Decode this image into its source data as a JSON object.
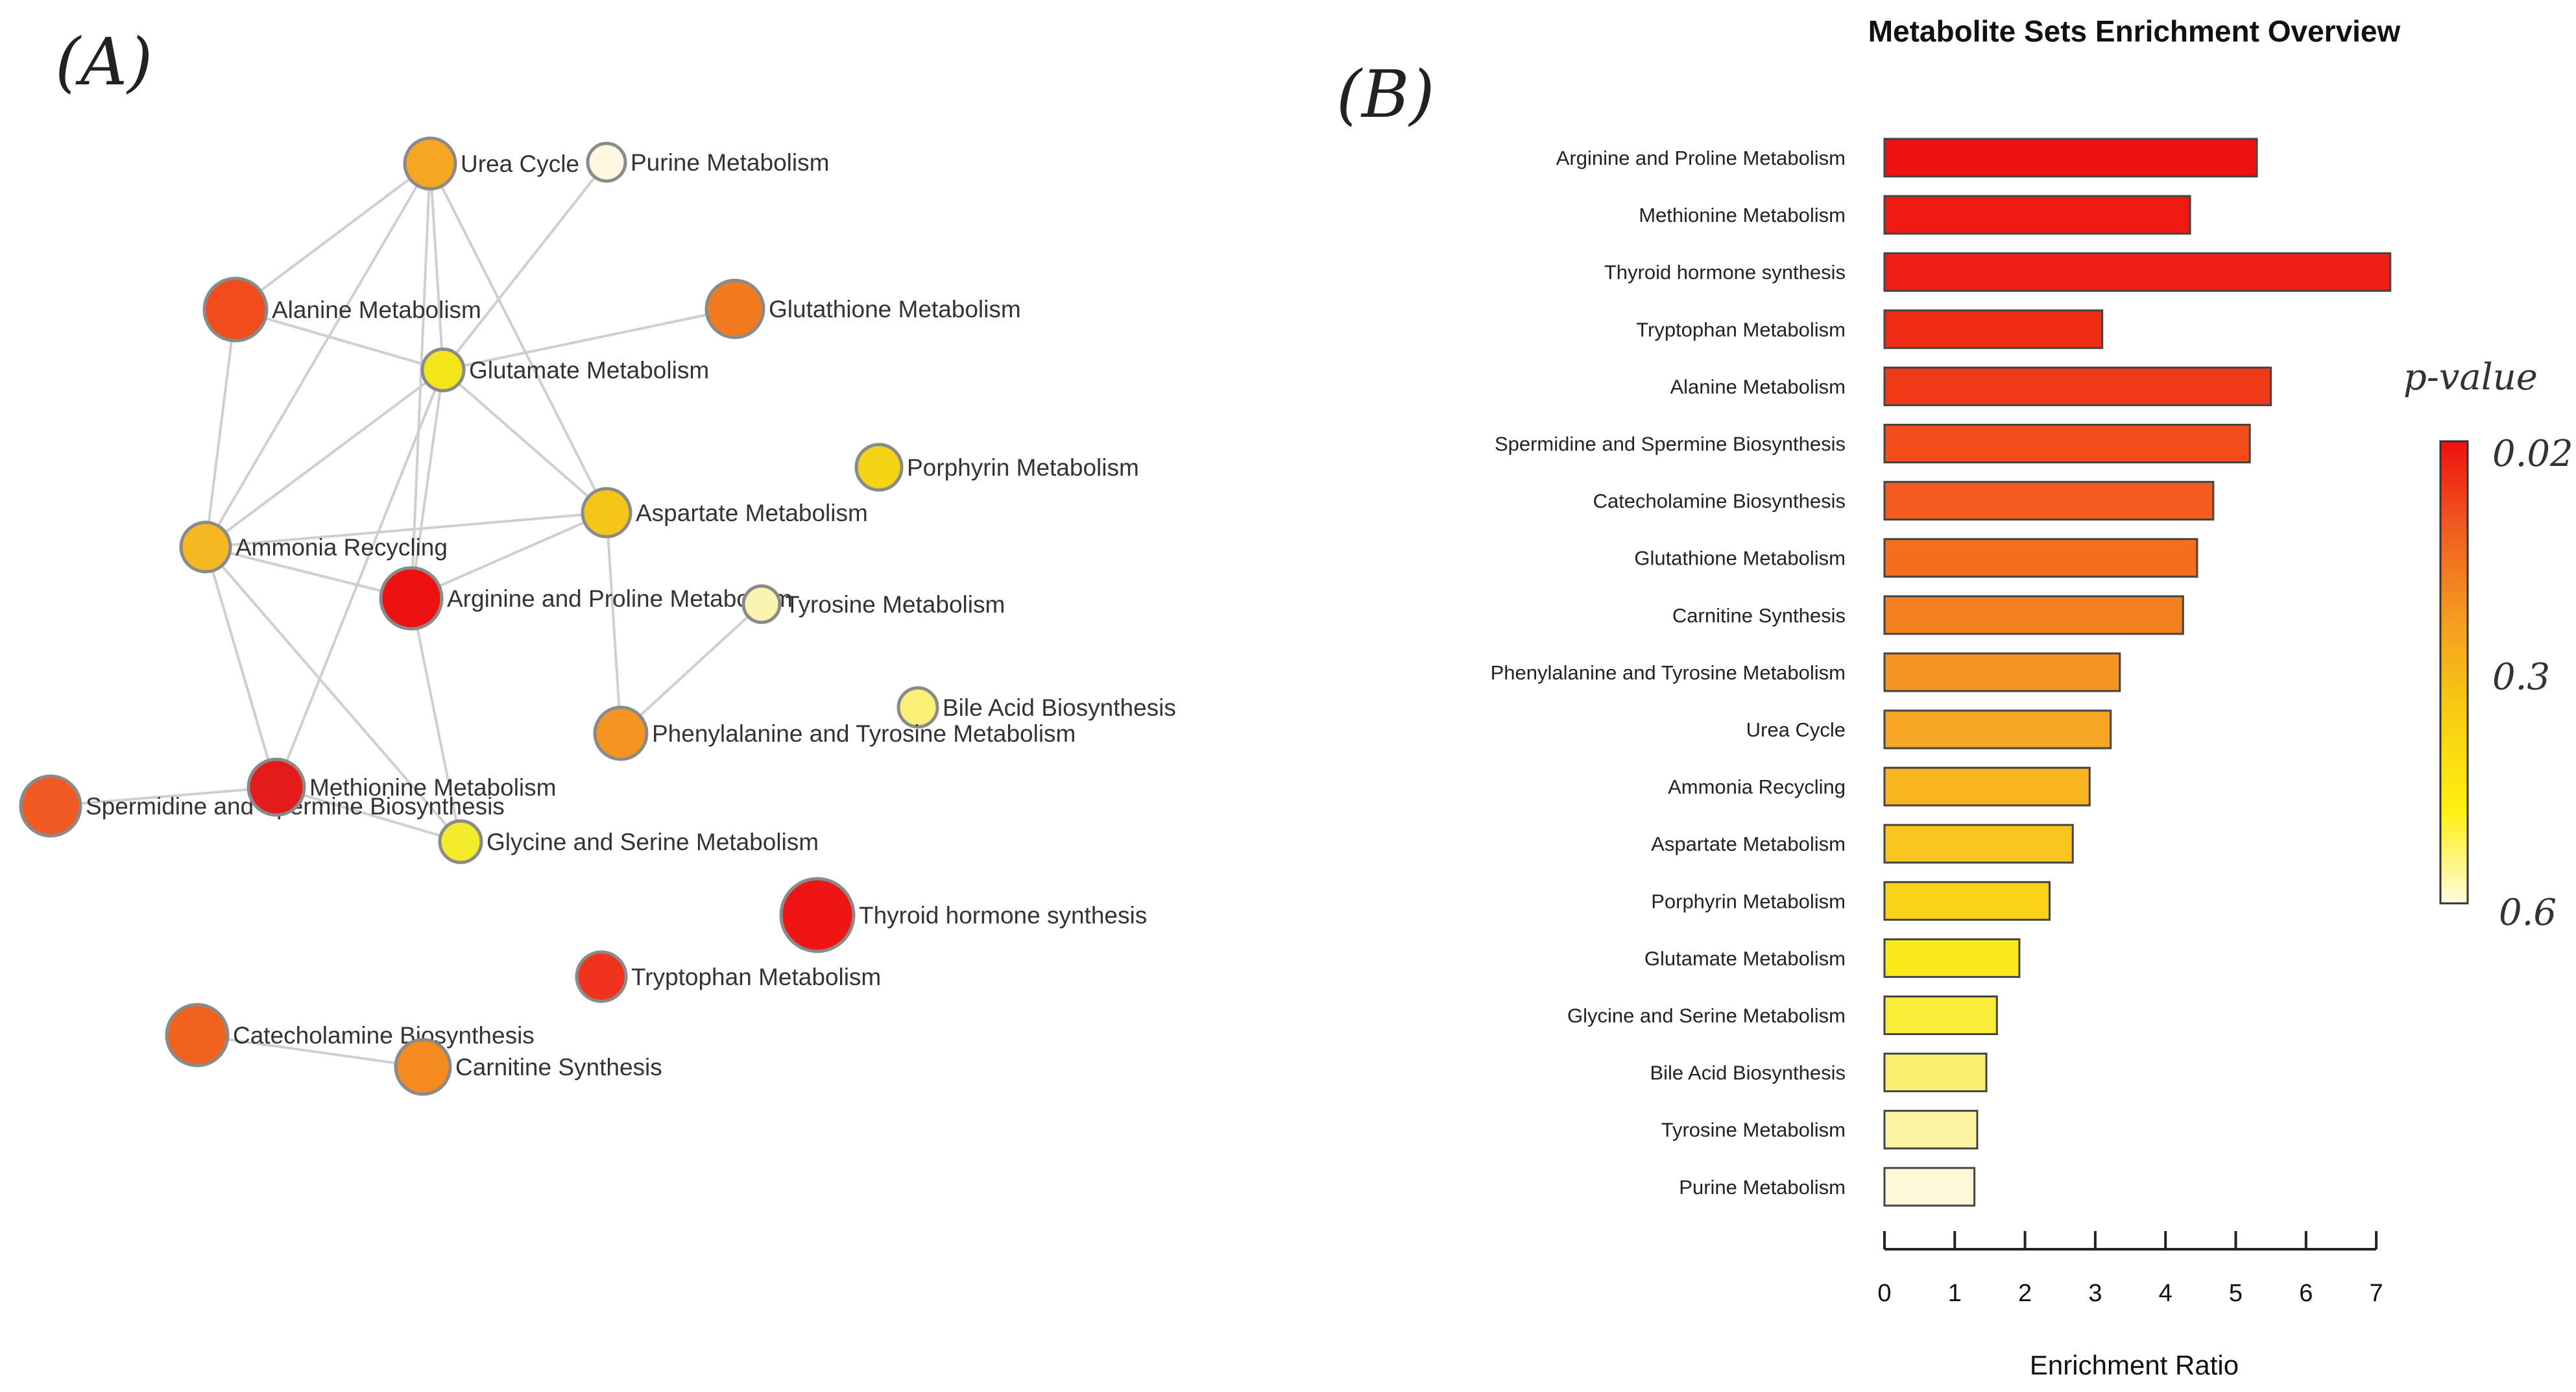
{
  "panel_a": {
    "label": "(A)",
    "nodes": [
      {
        "id": "urea",
        "label": "Urea Cycle",
        "color": "#f5a623"
      },
      {
        "id": "purine",
        "label": "Purine Metabolism",
        "color": "#fff7e0"
      },
      {
        "id": "alanine",
        "label": "Alanine Metabolism",
        "color": "#f14c1c"
      },
      {
        "id": "glutathione",
        "label": "Glutathione Metabolism",
        "color": "#f37a1f"
      },
      {
        "id": "glutamate",
        "label": "Glutamate Metabolism",
        "color": "#f2e51a"
      },
      {
        "id": "porphyrin",
        "label": "Porphyrin Metabolism",
        "color": "#f5d315"
      },
      {
        "id": "aspartate",
        "label": "Aspartate Metabolism",
        "color": "#f5c518"
      },
      {
        "id": "ammonia",
        "label": "Ammonia Recycling",
        "color": "#f5b822"
      },
      {
        "id": "arginine",
        "label": "Arginine and Proline Metabolism",
        "color": "#ee1111"
      },
      {
        "id": "tyrosine",
        "label": "Tyrosine Metabolism",
        "color": "#fbf4b0"
      },
      {
        "id": "bileacid",
        "label": "Bile Acid Biosynthesis",
        "color": "#fbf078"
      },
      {
        "id": "phenylalanine",
        "label": "Phenylalanine and Tyrosine Metabolism",
        "color": "#f59323"
      },
      {
        "id": "spermidine",
        "label": "Spermidine and Spermine Biosynthesis",
        "color": "#f15a22"
      },
      {
        "id": "methionine",
        "label": "Methionine Metabolism",
        "color": "#e41b1b"
      },
      {
        "id": "glycine",
        "label": "Glycine and Serine Metabolism",
        "color": "#f2ea2a"
      },
      {
        "id": "thyroid",
        "label": "Thyroid hormone synthesis",
        "color": "#f01515"
      },
      {
        "id": "tryptophan",
        "label": "Tryptophan Metabolism",
        "color": "#f0331c"
      },
      {
        "id": "catecholamine",
        "label": "Catecholamine Biosynthesis",
        "color": "#f1621e"
      },
      {
        "id": "carnitine",
        "label": "Carnitine Synthesis",
        "color": "#f58a1f"
      }
    ],
    "edges": [
      [
        "urea",
        "alanine"
      ],
      [
        "urea",
        "glutamate"
      ],
      [
        "urea",
        "ammonia"
      ],
      [
        "urea",
        "aspartate"
      ],
      [
        "urea",
        "arginine"
      ],
      [
        "purine",
        "glutamate"
      ],
      [
        "alanine",
        "glutamate"
      ],
      [
        "alanine",
        "ammonia"
      ],
      [
        "glutathione",
        "glutamate"
      ],
      [
        "glutamate",
        "ammonia"
      ],
      [
        "glutamate",
        "aspartate"
      ],
      [
        "glutamate",
        "arginine"
      ],
      [
        "glutamate",
        "methionine"
      ],
      [
        "aspartate",
        "ammonia"
      ],
      [
        "aspartate",
        "arginine"
      ],
      [
        "aspartate",
        "phenylalanine"
      ],
      [
        "ammonia",
        "arginine"
      ],
      [
        "ammonia",
        "methionine"
      ],
      [
        "ammonia",
        "glycine"
      ],
      [
        "arginine",
        "glycine"
      ],
      [
        "tyrosine",
        "phenylalanine"
      ],
      [
        "spermidine",
        "methionine"
      ],
      [
        "methionine",
        "glycine"
      ],
      [
        "catecholamine",
        "carnitine"
      ]
    ]
  },
  "panel_b": {
    "label": "(B)",
    "legend": {
      "title": "p-value",
      "ticks": [
        "0.02",
        "0.3",
        "0.6"
      ],
      "colors": [
        "#f01010",
        "#f06020",
        "#f5a020",
        "#f8d010",
        "#fff010",
        "#fffbe0"
      ]
    }
  },
  "chart_data": {
    "type": "bar",
    "orientation": "horizontal",
    "title": "Metabolite Sets Enrichment Overview",
    "xlabel": "Enrichment Ratio",
    "ylabel": "",
    "xlim": [
      0,
      7
    ],
    "xticks": [
      "0",
      "1",
      "2",
      "3",
      "4",
      "5",
      "6",
      "7"
    ],
    "categories": [
      "Arginine and Proline Metabolism",
      "Methionine Metabolism",
      "Thyroid hormone synthesis",
      "Tryptophan Metabolism",
      "Alanine Metabolism",
      "Spermidine and Spermine Biosynthesis",
      "Catecholamine Biosynthesis",
      "Glutathione Metabolism",
      "Carnitine Synthesis",
      "Phenylalanine and Tyrosine Metabolism",
      "Urea Cycle",
      "Ammonia Recycling",
      "Aspartate Metabolism",
      "Porphyrin Metabolism",
      "Glutamate Metabolism",
      "Glycine and Serine Metabolism",
      "Bile Acid Biosynthesis",
      "Tyrosine Metabolism",
      "Purine Metabolism"
    ],
    "values": [
      5.3,
      4.35,
      7.2,
      3.1,
      5.5,
      5.2,
      4.68,
      4.45,
      4.25,
      3.35,
      3.22,
      2.92,
      2.68,
      2.35,
      1.92,
      1.6,
      1.45,
      1.32,
      1.28
    ],
    "colors": [
      "#ee1111",
      "#ef1a12",
      "#ee1f14",
      "#ef2c14",
      "#f03a17",
      "#f24d1b",
      "#f35c1e",
      "#f46e1f",
      "#f58020",
      "#f69422",
      "#f7a623",
      "#f8b520",
      "#f9c51e",
      "#fbd21a",
      "#fbe81a",
      "#fbec38",
      "#fbef70",
      "#fcf3a5",
      "#fdf8d8"
    ]
  }
}
